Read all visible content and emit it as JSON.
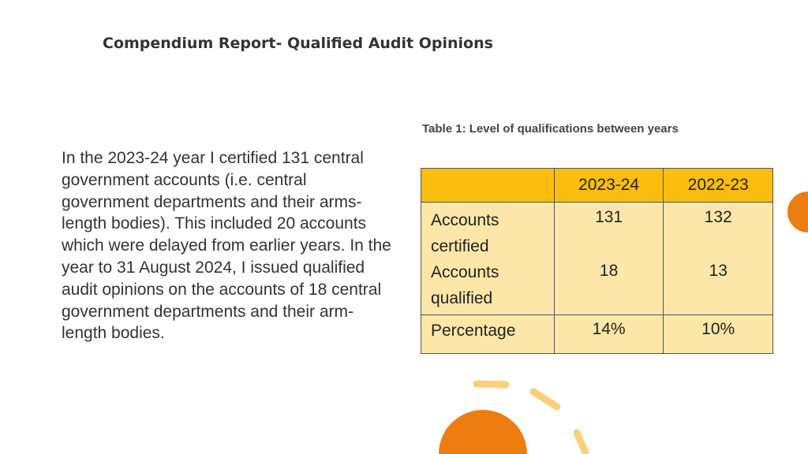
{
  "page": {
    "title": "Compendium Report- Qualified Audit Opinions"
  },
  "body_text": "In the 2023-24 year I certified 131 central government accounts (i.e. central government departments and their arms-length bodies). This included 20 accounts which were delayed from earlier years. In the year to 31 August 2024, I issued qualified audit opinions on the accounts of 18 central government departments and their arm-length bodies.",
  "table": {
    "caption": "Table 1: Level of qualifications between years",
    "headers": [
      "",
      "2023-24",
      "2022-23"
    ],
    "rows": [
      {
        "label_line1": "Accounts",
        "label_line2": "certified",
        "values": [
          "131",
          "132"
        ]
      },
      {
        "label_line1": "Accounts",
        "label_line2": "qualified",
        "values": [
          "18",
          "13"
        ]
      },
      {
        "label": "Percentage",
        "values": [
          "14%",
          "10%"
        ]
      }
    ]
  },
  "colors": {
    "header_fill": "#fbbd0e",
    "body_fill": "#fde7a8",
    "accent_orange": "#ee7d11",
    "accent_yellow": "#fbd07a"
  }
}
